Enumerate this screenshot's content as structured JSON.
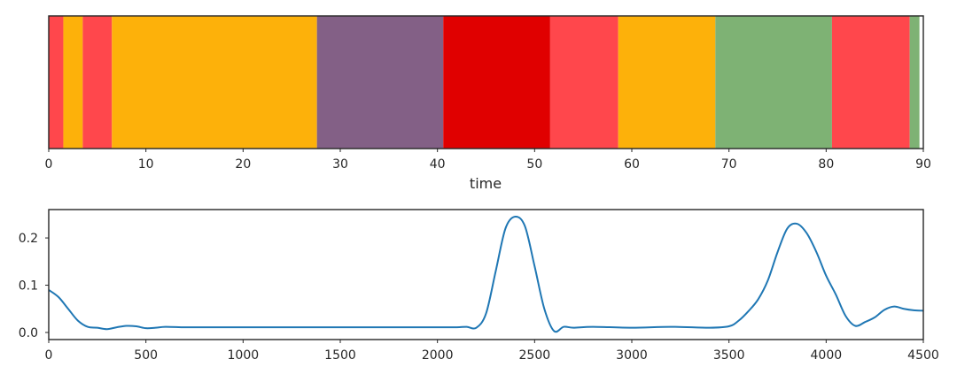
{
  "chart_data": [
    {
      "type": "bar",
      "subtype": "state-timeline",
      "xlabel": "time",
      "ylabel": "",
      "xlim": [
        0,
        90
      ],
      "xticks": [
        0,
        10,
        20,
        30,
        40,
        50,
        60,
        70,
        80,
        90
      ],
      "xtick_labels": [
        "0",
        "10",
        "20",
        "30",
        "40",
        "50",
        "60",
        "70",
        "80",
        "90"
      ],
      "grid": false,
      "segments": [
        {
          "start": 0.0,
          "end": 1.5,
          "color": "#ff474c"
        },
        {
          "start": 1.5,
          "end": 3.5,
          "color": "#fdb10a"
        },
        {
          "start": 3.5,
          "end": 6.5,
          "color": "#ff474c"
        },
        {
          "start": 6.5,
          "end": 27.6,
          "color": "#fdb10a"
        },
        {
          "start": 27.6,
          "end": 40.6,
          "color": "#836086"
        },
        {
          "start": 40.6,
          "end": 51.6,
          "color": "#e00000"
        },
        {
          "start": 51.6,
          "end": 58.6,
          "color": "#ff474c"
        },
        {
          "start": 58.6,
          "end": 68.6,
          "color": "#fdb10a"
        },
        {
          "start": 68.6,
          "end": 80.6,
          "color": "#7eb274"
        },
        {
          "start": 80.6,
          "end": 88.6,
          "color": "#ff474c"
        },
        {
          "start": 88.6,
          "end": 89.6,
          "color": "#7eb274"
        }
      ]
    },
    {
      "type": "line",
      "xlabel": "",
      "ylabel": "",
      "xlim": [
        0,
        4500
      ],
      "ylim": [
        -0.015,
        0.26
      ],
      "xticks": [
        0,
        500,
        1000,
        1500,
        2000,
        2500,
        3000,
        3500,
        4000,
        4500
      ],
      "xtick_labels": [
        "0",
        "500",
        "1000",
        "1500",
        "2000",
        "2500",
        "3000",
        "3500",
        "4000",
        "4500"
      ],
      "yticks": [
        0.0,
        0.1,
        0.2
      ],
      "ytick_labels": [
        "0.0",
        "0.1",
        "0.2"
      ],
      "grid": false,
      "color": "#1f77b4",
      "series": [
        {
          "x": [
            0,
            50,
            100,
            150,
            200,
            250,
            300,
            350,
            400,
            450,
            500,
            550,
            600,
            700,
            800,
            1000,
            1200,
            1500,
            1800,
            2000,
            2100,
            2150,
            2200,
            2250,
            2300,
            2350,
            2400,
            2450,
            2500,
            2550,
            2600,
            2650,
            2700,
            2800,
            3000,
            3200,
            3400,
            3500,
            3550,
            3600,
            3650,
            3700,
            3750,
            3800,
            3850,
            3900,
            3950,
            4000,
            4050,
            4100,
            4150,
            4200,
            4250,
            4300,
            4350,
            4400,
            4450,
            4500
          ],
          "y": [
            0.09,
            0.075,
            0.05,
            0.025,
            0.012,
            0.01,
            0.007,
            0.011,
            0.014,
            0.013,
            0.009,
            0.01,
            0.012,
            0.011,
            0.011,
            0.011,
            0.011,
            0.011,
            0.011,
            0.011,
            0.011,
            0.012,
            0.01,
            0.04,
            0.13,
            0.22,
            0.245,
            0.225,
            0.14,
            0.05,
            0.003,
            0.012,
            0.01,
            0.012,
            0.01,
            0.012,
            0.01,
            0.013,
            0.025,
            0.045,
            0.07,
            0.11,
            0.17,
            0.22,
            0.23,
            0.21,
            0.17,
            0.12,
            0.08,
            0.035,
            0.014,
            0.022,
            0.032,
            0.048,
            0.055,
            0.05,
            0.047,
            0.046
          ]
        }
      ]
    }
  ]
}
